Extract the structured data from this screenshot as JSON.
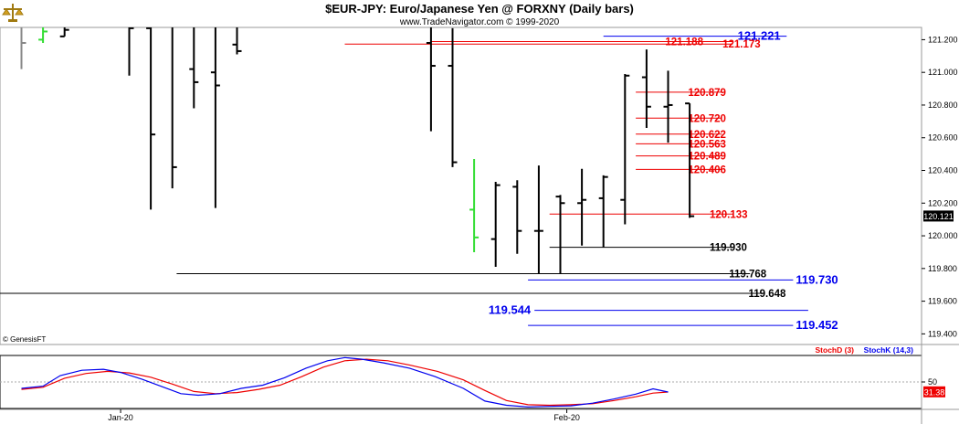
{
  "header": {
    "title": "$EUR-JPY:  Euro/Japanese Yen @ FORXNY  (Daily bars)",
    "subtitle": "www.TradeNavigator.com © 1999-2020"
  },
  "copyright": "© GenesisFT",
  "chart_data": {
    "type": "bar",
    "title": "$EUR-JPY:  Euro/Japanese Yen @ FORXNY  (Daily bars)",
    "price_axis": {
      "ylim": [
        119.335,
        121.275
      ],
      "ticks": [
        "121.200",
        "121.000",
        "120.800",
        "120.600",
        "120.400",
        "120.200",
        "120.000",
        "119.800",
        "119.600",
        "119.400"
      ],
      "current_price": "120.121"
    },
    "x_labels": [
      {
        "label": "Jan-20",
        "index": 4.6
      },
      {
        "label": "Feb-20",
        "index": 25.3
      }
    ],
    "bars": [
      {
        "x": 0,
        "open": 121.28,
        "high": 121.29,
        "low": 121.02,
        "close": 121.18,
        "color": "#888888"
      },
      {
        "x": 1,
        "open": 121.2,
        "high": 121.3,
        "low": 121.18,
        "close": 121.25,
        "color": "#33dd33"
      },
      {
        "x": 2,
        "open": 121.22,
        "high": 121.3,
        "low": 121.22,
        "close": 121.26,
        "color": "#000000"
      },
      {
        "x": 5,
        "open": 121.29,
        "high": 121.29,
        "low": 120.98,
        "close": 121.27,
        "color": "#000000"
      },
      {
        "x": 6,
        "open": 121.27,
        "high": 121.3,
        "low": 120.16,
        "close": 120.62,
        "color": "#000000"
      },
      {
        "x": 7,
        "open": 121.29,
        "high": 121.29,
        "low": 120.29,
        "close": 120.42,
        "color": "#000000"
      },
      {
        "x": 8,
        "open": 121.02,
        "high": 121.3,
        "low": 120.78,
        "close": 120.94,
        "color": "#000000"
      },
      {
        "x": 9,
        "open": 121.0,
        "high": 121.3,
        "low": 120.17,
        "close": 120.92,
        "color": "#000000"
      },
      {
        "x": 10,
        "open": 121.17,
        "high": 121.3,
        "low": 121.11,
        "close": 121.13,
        "color": "#000000"
      },
      {
        "x": 19,
        "open": 121.18,
        "high": 121.28,
        "low": 120.64,
        "close": 121.04,
        "color": "#000000"
      },
      {
        "x": 20,
        "open": 121.04,
        "high": 121.27,
        "low": 120.42,
        "close": 120.45,
        "color": "#000000"
      },
      {
        "x": 21,
        "open": 120.16,
        "high": 120.47,
        "low": 119.9,
        "close": 119.99,
        "color": "#33dd33"
      },
      {
        "x": 22,
        "open": 119.98,
        "high": 120.33,
        "low": 119.81,
        "close": 120.31,
        "color": "#000000"
      },
      {
        "x": 23,
        "open": 120.3,
        "high": 120.34,
        "low": 119.89,
        "close": 120.03,
        "color": "#000000"
      },
      {
        "x": 24,
        "open": 120.03,
        "high": 120.43,
        "low": 119.77,
        "close": 120.03,
        "color": "#000000"
      },
      {
        "x": 25,
        "open": 120.24,
        "high": 120.25,
        "low": 119.77,
        "close": 120.2,
        "color": "#000000"
      },
      {
        "x": 26,
        "open": 120.2,
        "high": 120.41,
        "low": 119.94,
        "close": 120.22,
        "color": "#000000"
      },
      {
        "x": 27,
        "open": 120.23,
        "high": 120.37,
        "low": 119.93,
        "close": 120.36,
        "color": "#000000"
      },
      {
        "x": 28,
        "open": 120.22,
        "high": 120.99,
        "low": 120.07,
        "close": 120.98,
        "color": "#000000"
      },
      {
        "x": 29,
        "open": 120.97,
        "high": 121.14,
        "low": 120.66,
        "close": 120.79,
        "color": "#000000"
      },
      {
        "x": 30,
        "open": 120.79,
        "high": 121.01,
        "low": 120.57,
        "close": 120.8,
        "color": "#000000"
      },
      {
        "x": 31,
        "open": 120.81,
        "high": 120.81,
        "low": 120.11,
        "close": 120.12,
        "color": "#000000"
      }
    ],
    "levels": [
      {
        "value": "121.221",
        "price": 121.221,
        "color": "#0000ee",
        "from": 27.0,
        "to": 35.5,
        "label_x": 33.1,
        "label_side": "right",
        "big": true
      },
      {
        "value": "121.188",
        "price": 121.188,
        "color": "#ee0000",
        "from": 19.0,
        "to": 33.0,
        "label_x": 31.8,
        "label_side": "left",
        "big": false
      },
      {
        "value": "121.173",
        "price": 121.173,
        "color": "#ee0000",
        "from": 15.0,
        "to": 33.0,
        "label_x": 32.4,
        "label_side": "right",
        "big": false
      },
      {
        "value": "120.879",
        "price": 120.879,
        "color": "#ee0000",
        "from": 28.5,
        "to": 32.5,
        "label_x": 30.8,
        "label_side": "right",
        "big": false
      },
      {
        "value": "120.720",
        "price": 120.72,
        "color": "#ee0000",
        "from": 28.5,
        "to": 32.5,
        "label_x": 30.8,
        "label_side": "right",
        "big": false
      },
      {
        "value": "120.622",
        "price": 120.622,
        "color": "#ee0000",
        "from": 28.5,
        "to": 32.5,
        "label_x": 30.8,
        "label_side": "right",
        "big": false
      },
      {
        "value": "120.563",
        "price": 120.563,
        "color": "#ee0000",
        "from": 28.5,
        "to": 32.5,
        "label_x": 30.8,
        "label_side": "right",
        "big": false
      },
      {
        "value": "120.489",
        "price": 120.489,
        "color": "#ee0000",
        "from": 28.5,
        "to": 32.5,
        "label_x": 30.8,
        "label_side": "right",
        "big": false
      },
      {
        "value": "120.406",
        "price": 120.406,
        "color": "#ee0000",
        "from": 28.5,
        "to": 32.5,
        "label_x": 30.8,
        "label_side": "right",
        "big": false
      },
      {
        "value": "120.133",
        "price": 120.133,
        "color": "#ee0000",
        "from": 24.5,
        "to": 33.0,
        "label_x": 31.8,
        "label_side": "right",
        "big": false
      },
      {
        "value": "119.930",
        "price": 119.93,
        "color": "#000000",
        "from": 24.5,
        "to": 33.0,
        "label_x": 31.8,
        "label_side": "right",
        "big": false
      },
      {
        "value": "119.768",
        "price": 119.768,
        "color": "#000000",
        "from": 7.2,
        "to": 33.8,
        "label_x": 32.7,
        "label_side": "right",
        "big": false
      },
      {
        "value": "119.730",
        "price": 119.73,
        "color": "#0000ee",
        "from": 23.5,
        "to": 35.8,
        "label_x": 35.8,
        "label_side": "right",
        "big": true
      },
      {
        "value": "119.648",
        "price": 119.648,
        "color": "#000000",
        "from": -1.0,
        "to": 34.5,
        "label_x": 33.6,
        "label_side": "right",
        "big": false
      },
      {
        "value": "119.544",
        "price": 119.544,
        "color": "#0000ee",
        "from": 23.8,
        "to": 36.5,
        "label_x": 23.8,
        "label_side": "left",
        "big": true
      },
      {
        "value": "119.452",
        "price": 119.452,
        "color": "#0000ee",
        "from": 23.5,
        "to": 35.8,
        "label_x": 35.8,
        "label_side": "right",
        "big": true
      }
    ],
    "stochastic": {
      "legend": [
        {
          "name": "StochD (3)",
          "color": "#ee0000"
        },
        {
          "name": "StochK (14,3)",
          "color": "#0000ee"
        }
      ],
      "ylim": [
        0,
        100
      ],
      "tick": "50",
      "current_value": "31.38",
      "stochK": [
        [
          0,
          38
        ],
        [
          1,
          42
        ],
        [
          1.8,
          62
        ],
        [
          2.8,
          72
        ],
        [
          3.8,
          74
        ],
        [
          4.6,
          68
        ],
        [
          5.6,
          55
        ],
        [
          6.6,
          40
        ],
        [
          7.4,
          28
        ],
        [
          8.2,
          25
        ],
        [
          9.2,
          28
        ],
        [
          10.2,
          38
        ],
        [
          11.2,
          44
        ],
        [
          12.2,
          58
        ],
        [
          13.2,
          76
        ],
        [
          14.2,
          90
        ],
        [
          15.0,
          96
        ],
        [
          15.8,
          93
        ],
        [
          16.8,
          86
        ],
        [
          18.0,
          76
        ],
        [
          19.2,
          60
        ],
        [
          20.5,
          38
        ],
        [
          21.5,
          14
        ],
        [
          22.5,
          6
        ],
        [
          23.5,
          3
        ],
        [
          24.5,
          4
        ],
        [
          25.5,
          5
        ],
        [
          26.5,
          10
        ],
        [
          27.5,
          18
        ],
        [
          28.5,
          27
        ],
        [
          29.3,
          37
        ],
        [
          30.0,
          31
        ]
      ],
      "stochD": [
        [
          0,
          36
        ],
        [
          1,
          40
        ],
        [
          2,
          57
        ],
        [
          3,
          66
        ],
        [
          4,
          70
        ],
        [
          5,
          67
        ],
        [
          6,
          59
        ],
        [
          7,
          46
        ],
        [
          8,
          32
        ],
        [
          9,
          28
        ],
        [
          10,
          30
        ],
        [
          11,
          36
        ],
        [
          12,
          44
        ],
        [
          13,
          60
        ],
        [
          14,
          78
        ],
        [
          15,
          90
        ],
        [
          16,
          93
        ],
        [
          17,
          90
        ],
        [
          18,
          82
        ],
        [
          19.3,
          70
        ],
        [
          20.5,
          54
        ],
        [
          21.5,
          34
        ],
        [
          22.5,
          15
        ],
        [
          23.5,
          7
        ],
        [
          24.5,
          6
        ],
        [
          25.5,
          7
        ],
        [
          26.5,
          9
        ],
        [
          27.5,
          15
        ],
        [
          28.5,
          22
        ],
        [
          29.3,
          29
        ],
        [
          30.0,
          31
        ]
      ]
    }
  }
}
